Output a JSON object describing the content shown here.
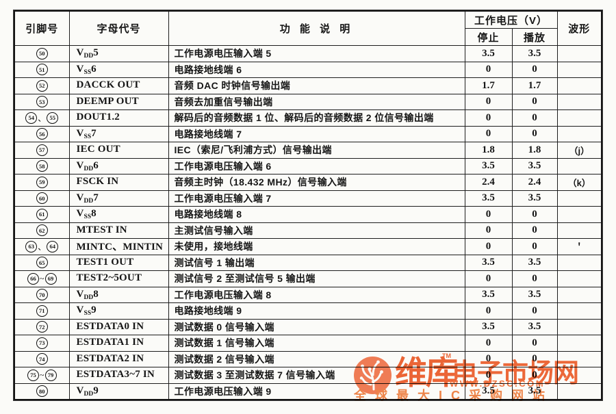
{
  "table": {
    "header": {
      "pin": "引脚号",
      "code": "字母代号",
      "desc": "功 能 说 明",
      "voltage_group": "工作电压（V）",
      "stop": "停止",
      "play": "播放",
      "wave": "波形"
    },
    "rows": [
      {
        "pins": "50",
        "code": {
          "base": "V",
          "sub": "DD",
          "rest": "5"
        },
        "desc": "工作电源电压输入端 5",
        "stop": "3.5",
        "play": "3.5",
        "wave": ""
      },
      {
        "pins": "51",
        "code": {
          "base": "V",
          "sub": "SS",
          "rest": "6"
        },
        "desc": "电路接地线端 6",
        "stop": "0",
        "play": "0",
        "wave": ""
      },
      {
        "pins": "52",
        "code": {
          "base": "DACCK OUT",
          "sub": "",
          "rest": ""
        },
        "desc": "音频 DAC 时钟信号输出端",
        "stop": "1.7",
        "play": "1.7",
        "wave": ""
      },
      {
        "pins": "53",
        "code": {
          "base": "DEEMP OUT",
          "sub": "",
          "rest": ""
        },
        "desc": "音频去加重信号输出端",
        "stop": "0",
        "play": "0",
        "wave": ""
      },
      {
        "pins": "54、55",
        "code": {
          "base": "DOUT1.2",
          "sub": "",
          "rest": ""
        },
        "desc": "解码后的音频数据 1 位、解码后的音频数据 2 位信号输出端",
        "stop": "0",
        "play": "0",
        "wave": ""
      },
      {
        "pins": "56",
        "code": {
          "base": "V",
          "sub": "SS",
          "rest": "7"
        },
        "desc": "电路接地线端 7",
        "stop": "0",
        "play": "0",
        "wave": ""
      },
      {
        "pins": "57",
        "code": {
          "base": "IEC OUT",
          "sub": "",
          "rest": ""
        },
        "desc": "IEC（索尼/飞利浦方式）信号输出端",
        "stop": "1.8",
        "play": "1.8",
        "wave": "（j）"
      },
      {
        "pins": "58",
        "code": {
          "base": "V",
          "sub": "DD",
          "rest": "6"
        },
        "desc": "工作电源电压输入端 6",
        "stop": "3.5",
        "play": "3.5",
        "wave": ""
      },
      {
        "pins": "59",
        "code": {
          "base": "FSCK IN",
          "sub": "",
          "rest": ""
        },
        "desc": "音频主时钟（18.432 MHz）信号输入端",
        "stop": "2.4",
        "play": "2.4",
        "wave": "（k）"
      },
      {
        "pins": "60",
        "code": {
          "base": "V",
          "sub": "DD",
          "rest": "7"
        },
        "desc": "工作电源电压输入端 7",
        "stop": "3.5",
        "play": "3.5",
        "wave": ""
      },
      {
        "pins": "61",
        "code": {
          "base": "V",
          "sub": "SS",
          "rest": "8"
        },
        "desc": "电路接地线端 8",
        "stop": "0",
        "play": "0",
        "wave": ""
      },
      {
        "pins": "62",
        "code": {
          "base": "MTEST IN",
          "sub": "",
          "rest": ""
        },
        "desc": "主测试信号输入端",
        "stop": "0",
        "play": "0",
        "wave": ""
      },
      {
        "pins": "63、64",
        "code": {
          "base": "MINTC、MINTIN",
          "sub": "",
          "rest": ""
        },
        "desc": "未使用，接地线端",
        "stop": "0",
        "play": "0",
        "wave": "＇"
      },
      {
        "pins": "65",
        "code": {
          "base": "TEST1 OUT",
          "sub": "",
          "rest": ""
        },
        "desc": "测试信号 1 输出端",
        "stop": "3.5",
        "play": "3.5",
        "wave": ""
      },
      {
        "pins": "66~69",
        "code": {
          "base": "TEST2~5OUT",
          "sub": "",
          "rest": ""
        },
        "desc": "测试信号 2 至测试信号 5 输出端",
        "stop": "0",
        "play": "0",
        "wave": ""
      },
      {
        "pins": "70",
        "code": {
          "base": "V",
          "sub": "DD",
          "rest": "8"
        },
        "desc": "工作电源电压输入端 8",
        "stop": "3.5",
        "play": "3.5",
        "wave": ""
      },
      {
        "pins": "71",
        "code": {
          "base": "V",
          "sub": "SS",
          "rest": "9"
        },
        "desc": "电路接地线端 9",
        "stop": "0",
        "play": "0",
        "wave": ""
      },
      {
        "pins": "72",
        "code": {
          "base": "ESTDATA0 IN",
          "sub": "",
          "rest": ""
        },
        "desc": "测试数据 0 信号输入端",
        "stop": "3.5",
        "play": "3.5",
        "wave": ""
      },
      {
        "pins": "73",
        "code": {
          "base": "ESTDATA1 IN",
          "sub": "",
          "rest": ""
        },
        "desc": "测试数据 1 信号输入端",
        "stop": "0",
        "play": "0",
        "wave": ""
      },
      {
        "pins": "74",
        "code": {
          "base": "ESTDATA2 IN",
          "sub": "",
          "rest": ""
        },
        "desc": "测试数据 2 信号输入端",
        "stop": "0",
        "play": "0",
        "wave": ""
      },
      {
        "pins": "75~79",
        "code": {
          "base": "ESTDATA3~7 IN",
          "sub": "",
          "rest": ""
        },
        "desc": "测试数据 3 至测试数据 7 信号输入端",
        "stop": "0",
        "play": "0",
        "wave": ""
      },
      {
        "pins": "80",
        "code": {
          "base": "V",
          "sub": "DD",
          "rest": "9"
        },
        "desc": "工作电源电压输入端 9",
        "stop": "3.5",
        "play": "3.5",
        "wave": ""
      }
    ]
  },
  "watermark": {
    "brand": "维库",
    "tm": "TM",
    "suffix": "电子市场网",
    "url": "WWW.DZSC.COM",
    "tagline": "全球最大IC采购网站",
    "logo_icon": "circuit-tree-icon",
    "colors": {
      "text": "#ee5a27",
      "circle": "#f3744a",
      "tagline": "#f07d3d"
    }
  }
}
